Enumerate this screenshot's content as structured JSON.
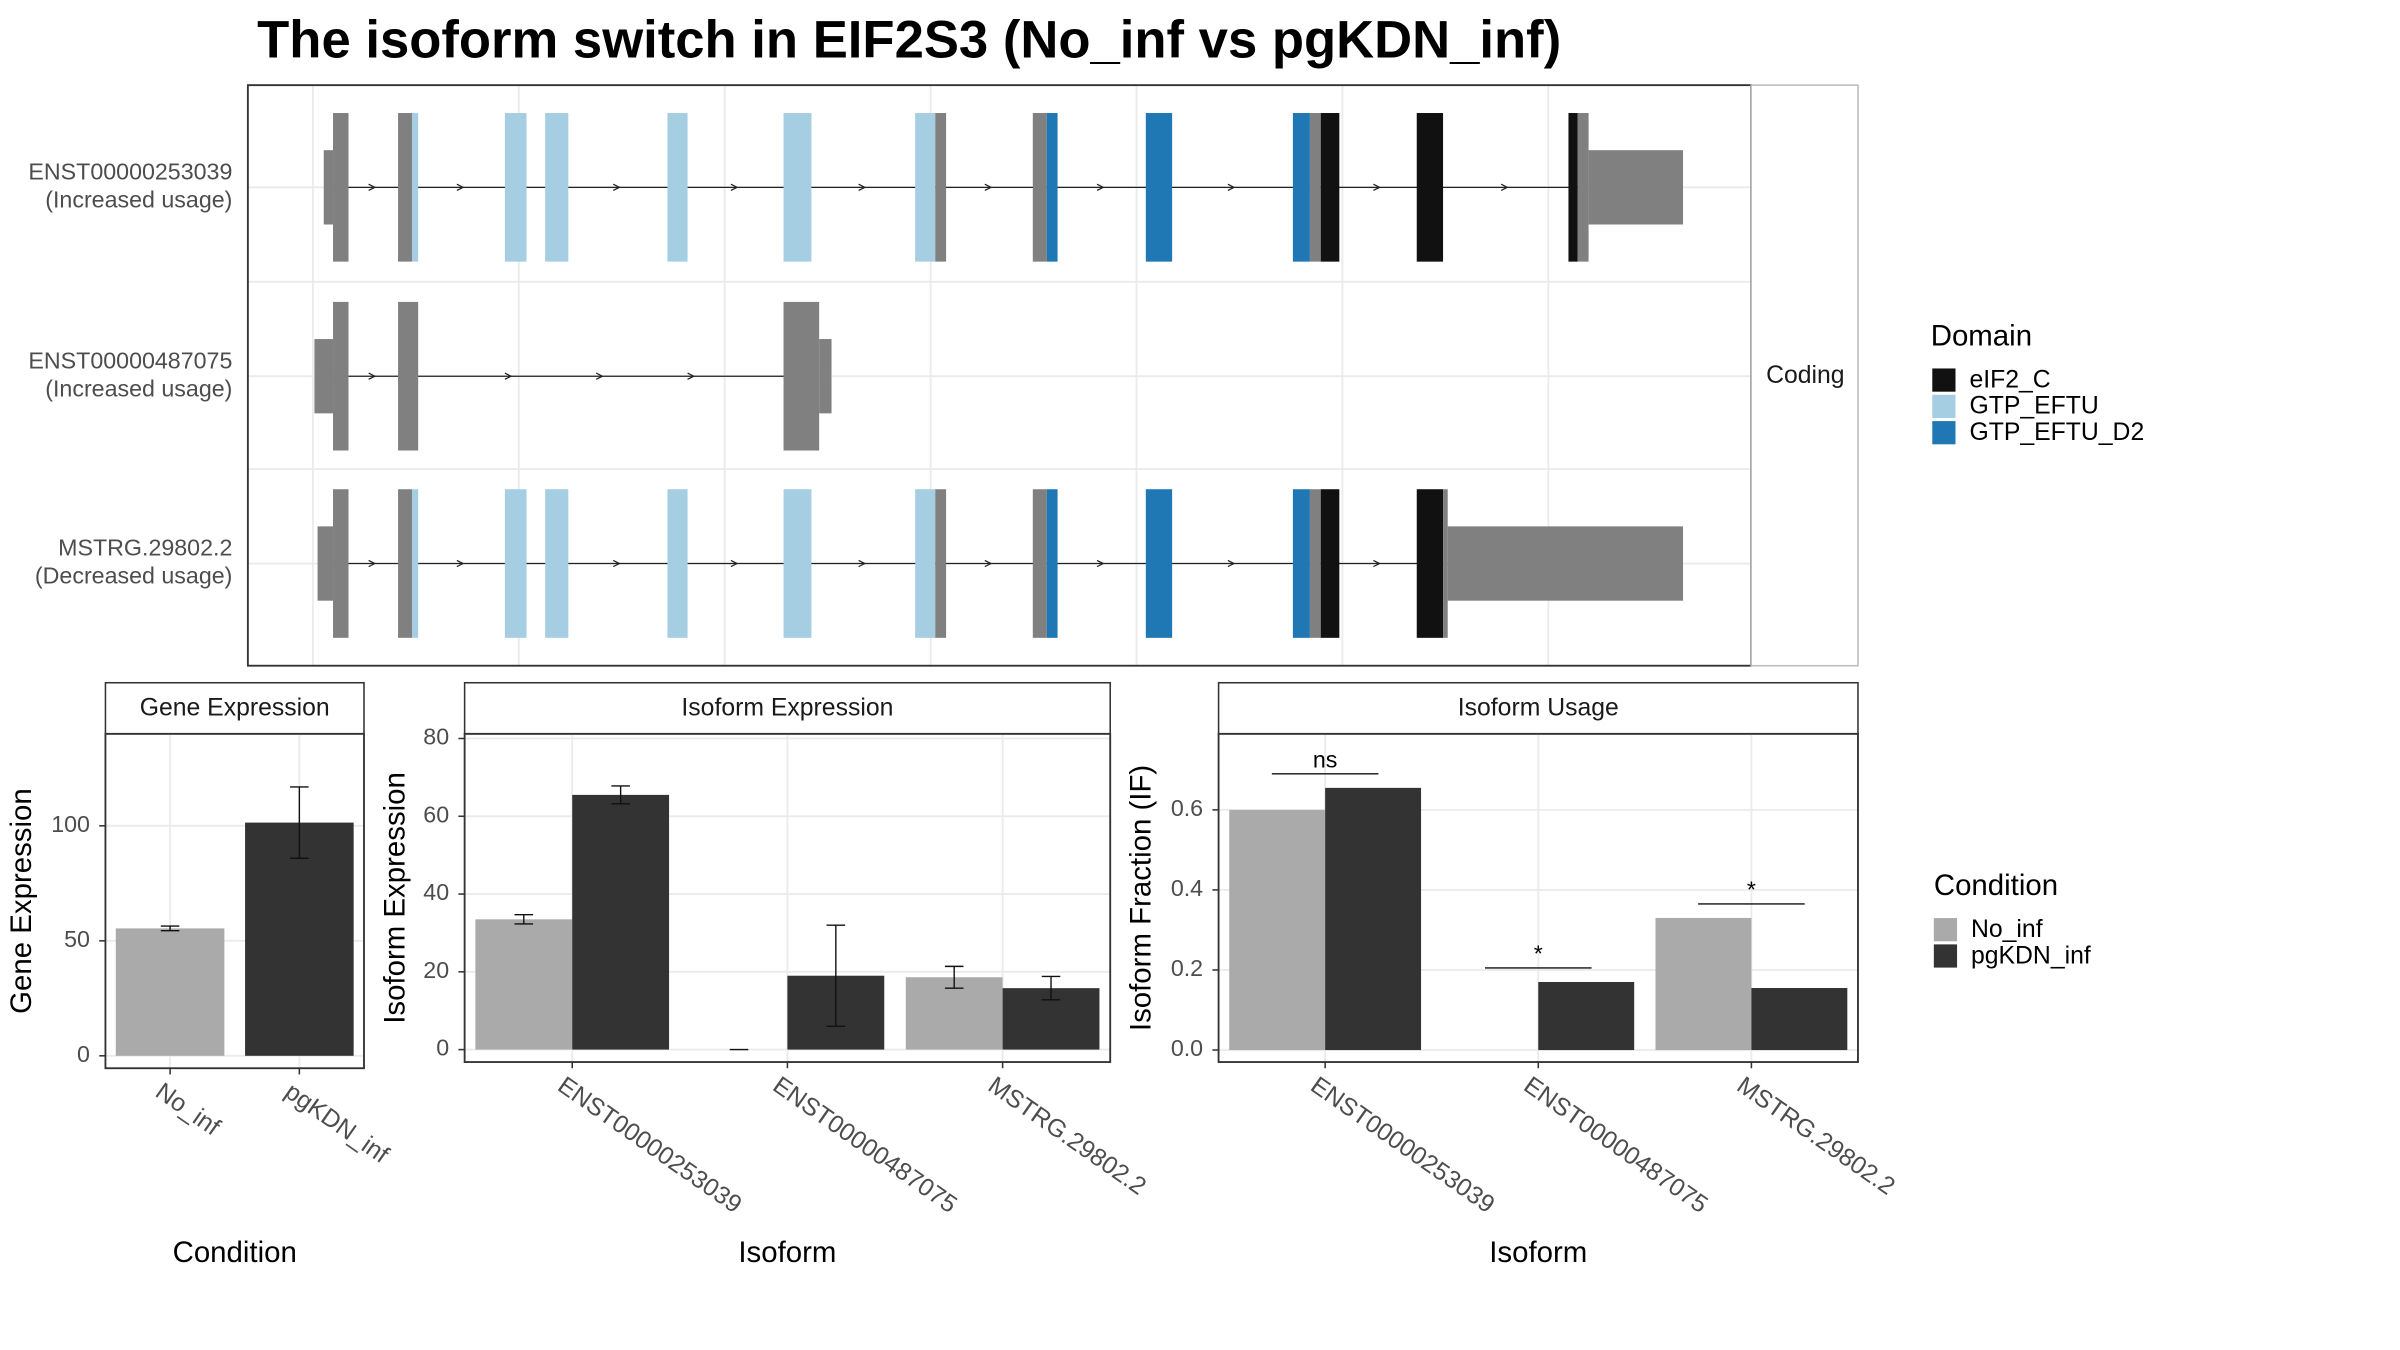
{
  "chart_data": [
    {
      "type": "isoform-structure",
      "title": "The isoform switch in EIF2S3 (No_inf vs pgKDN_inf)",
      "transcripts": [
        {
          "name": "ENST00000253039",
          "note": "(Increased usage)"
        },
        {
          "name": "ENST00000487075",
          "note": "(Increased usage)"
        },
        {
          "name": "MSTRG.29802.2",
          "note": "(Decreased usage)"
        }
      ],
      "strip": "Coding",
      "legend_title": "Domain",
      "domains": [
        {
          "name": "eIF2_C",
          "color": "#111111"
        },
        {
          "name": "GTP_EFTU",
          "color": "#a6cee3"
        },
        {
          "name": "GTP_EFTU_D2",
          "color": "#1f78b4"
        }
      ]
    },
    {
      "type": "bar",
      "title": "Gene Expression",
      "ylabel": "Gene Expression",
      "xlabel": "Condition",
      "categories": [
        "No_inf",
        "pgKDN_inf"
      ],
      "values": [
        55.4,
        101.4
      ],
      "errors": [
        1,
        15.5
      ],
      "colors": [
        "#aaaaaa",
        "#333333"
      ],
      "ylim": [
        -5.4,
        140
      ],
      "yticks": [
        0,
        50,
        100
      ],
      "grid": true
    },
    {
      "type": "grouped-bar",
      "title": "Isoform Expression",
      "ylabel": "Isoform Expression",
      "xlabel": "Isoform",
      "categories": [
        "ENST00000253039",
        "ENST00000487075",
        "MSTRG.29802.2"
      ],
      "series": [
        {
          "name": "No_inf",
          "color": "#aaaaaa",
          "values": [
            33.5,
            0,
            18.6
          ],
          "errors": [
            1.2,
            0,
            2.8
          ]
        },
        {
          "name": "pgKDN_inf",
          "color": "#333333",
          "values": [
            65.5,
            19,
            15.8
          ],
          "errors": [
            2.3,
            13,
            3
          ]
        }
      ],
      "legend_title": "Condition",
      "ylim": [
        -3.2,
        81.2
      ],
      "yticks": [
        0,
        20,
        40,
        60,
        80
      ],
      "grid": true
    },
    {
      "type": "grouped-bar",
      "title": "Isoform Usage",
      "ylabel": "Isoform Fraction (IF)",
      "xlabel": "Isoform",
      "categories": [
        "ENST00000253039",
        "ENST00000487075",
        "MSTRG.29802.2"
      ],
      "series": [
        {
          "name": "No_inf",
          "color": "#aaaaaa",
          "values": [
            0.6,
            0,
            0.33
          ]
        },
        {
          "name": "pgKDN_inf",
          "color": "#333333",
          "values": [
            0.655,
            0.17,
            0.155
          ]
        }
      ],
      "annotations": [
        {
          "label": "ns",
          "y": 0.69
        },
        {
          "label": "*",
          "y": 0.205
        },
        {
          "label": "*",
          "y": 0.365
        }
      ],
      "ylim": [
        -0.03,
        0.79
      ],
      "yticks": [
        {
          "value": 0,
          "label": "0.0"
        },
        0.2,
        0.4,
        0.6
      ],
      "grid": true
    }
  ]
}
